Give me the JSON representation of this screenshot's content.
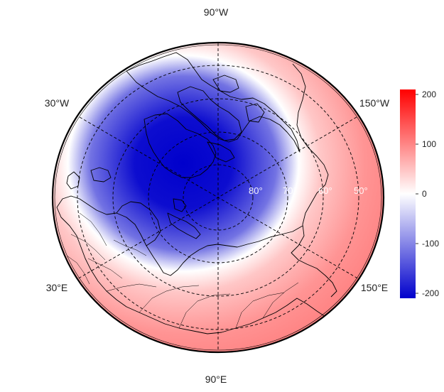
{
  "map": {
    "projection": "north-polar-stereographic",
    "longitude_labels": {
      "top": "90°W",
      "upper_left": "30°W",
      "upper_right": "150°W",
      "lower_left": "30°E",
      "lower_right": "150°E",
      "bottom": "90°E"
    },
    "latitude_labels": [
      "80°",
      "70°",
      "60°",
      "50°"
    ],
    "field_colors": {
      "negative": "#0000cc",
      "zero": "#ffffff",
      "positive": "#ff0000"
    }
  },
  "colorbar": {
    "min": -210,
    "max": 210,
    "ticks": [
      {
        "value": 200,
        "label": "200"
      },
      {
        "value": 100,
        "label": "100"
      },
      {
        "value": 0,
        "label": "0"
      },
      {
        "value": -100,
        "label": "-100"
      },
      {
        "value": -200,
        "label": "-200"
      }
    ]
  }
}
